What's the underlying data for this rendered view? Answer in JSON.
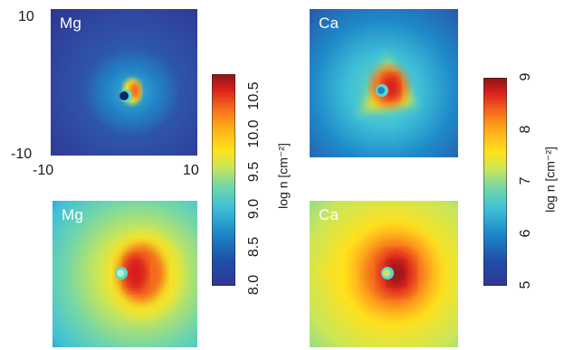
{
  "chart_data": [
    {
      "type": "heatmap",
      "element": "Mg",
      "panel_position": "top-left",
      "xlim": [
        -10,
        10
      ],
      "ylim": [
        -10,
        10
      ],
      "x_ticks": [
        "-10",
        "10"
      ],
      "y_ticks": [
        "10",
        "-10"
      ],
      "colorbar": "mg",
      "peak_log_n": 10.5,
      "shape": "compact hot spot around central body, broad blue halo"
    },
    {
      "type": "heatmap",
      "element": "Mg",
      "panel_position": "bottom-left",
      "colorbar": "mg",
      "peak_log_n": 10.5,
      "shape": "hot region downstream (right) of body, wide yellow/green halo"
    },
    {
      "type": "heatmap",
      "element": "Ca",
      "panel_position": "top-right",
      "colorbar": "ca",
      "peak_log_n": 9,
      "shape": "triangular hot region around body, cyan halo"
    },
    {
      "type": "heatmap",
      "element": "Ca",
      "panel_position": "bottom-right",
      "colorbar": "ca",
      "peak_log_n": 9,
      "shape": "large hot region around body, orange/yellow halo with tail to the left"
    }
  ],
  "colorbars": {
    "mg": {
      "ticks": [
        "8.0",
        "8.5",
        "9.0",
        "9.5",
        "10.0",
        "10.5"
      ],
      "tick_values": [
        8.0,
        8.5,
        9.0,
        9.5,
        10.0,
        10.5
      ],
      "range": [
        8.0,
        10.8
      ],
      "label": "log n [cm⁻²]"
    },
    "ca": {
      "ticks": [
        "5",
        "6",
        "7",
        "8",
        "9"
      ],
      "tick_values": [
        5,
        6,
        7,
        8,
        9
      ],
      "range": [
        5,
        9
      ],
      "label": "log n [cm⁻²]"
    }
  },
  "colormap": [
    "#313695",
    "#1f4fa8",
    "#1e88c8",
    "#3fc0d8",
    "#72d6a8",
    "#c8e65a",
    "#ffe21e",
    "#ffb11a",
    "#f46a1a",
    "#d81e1e",
    "#8e1414"
  ],
  "body_color": "#5cd6cf",
  "body_core_color": "#0d2a5c"
}
